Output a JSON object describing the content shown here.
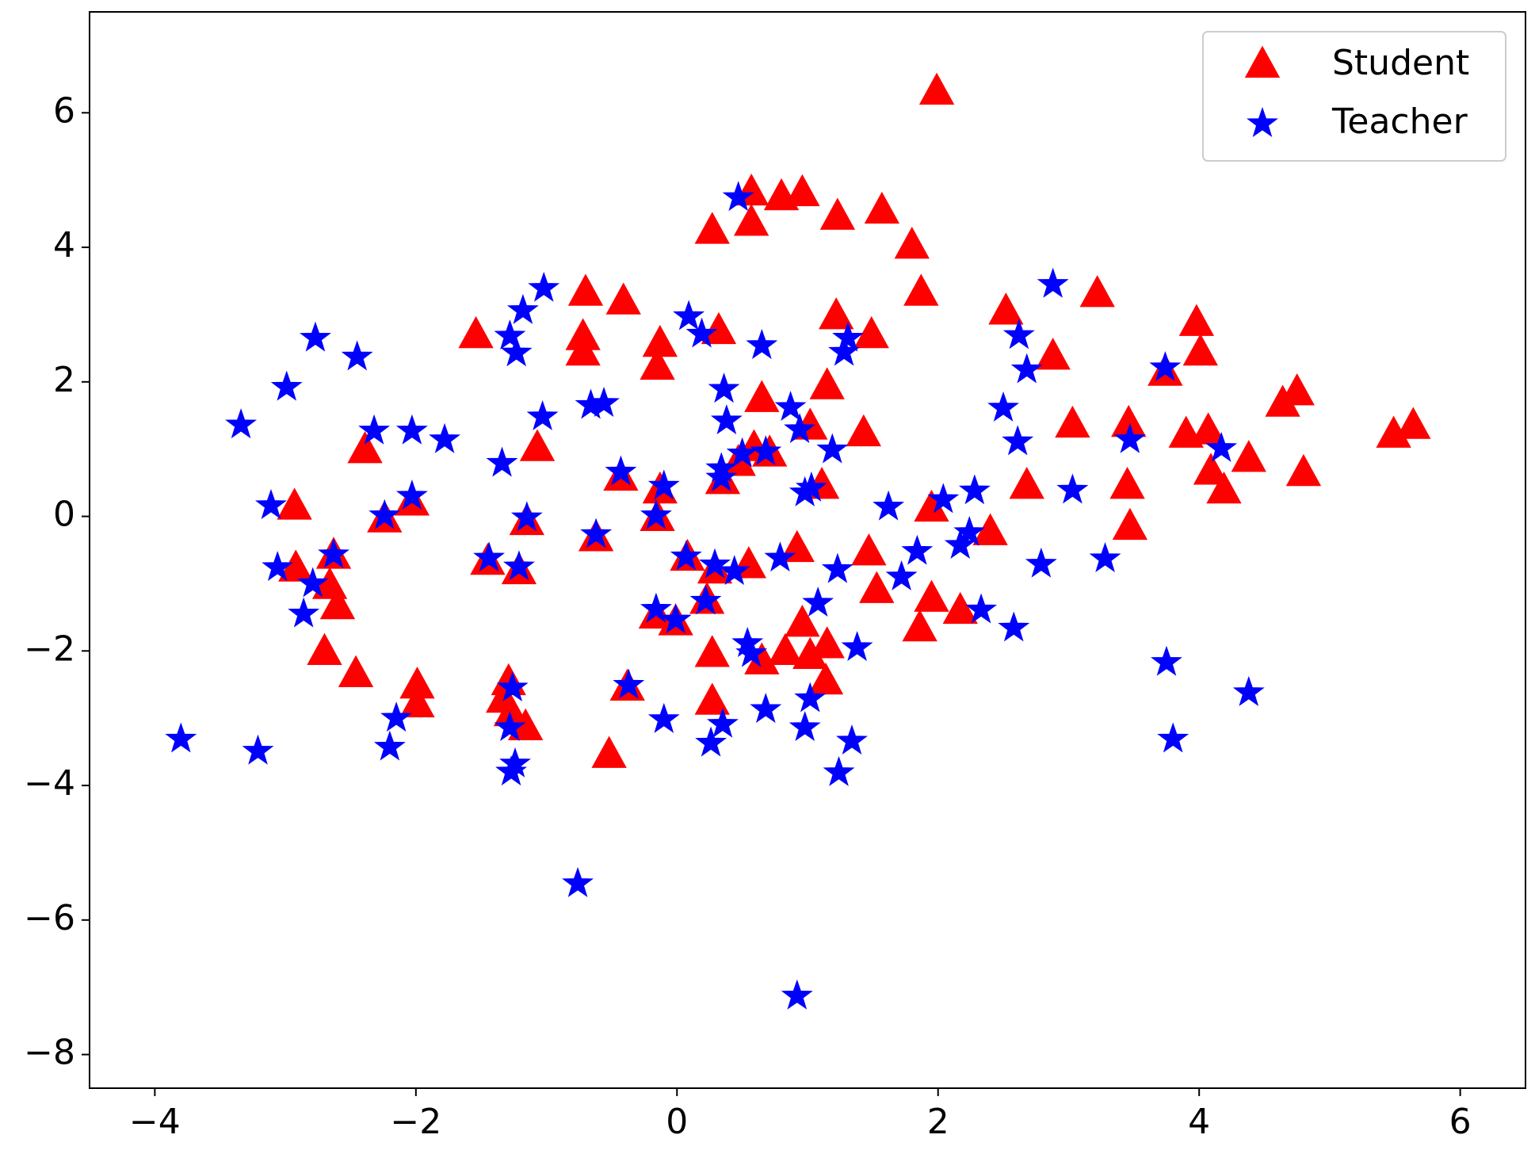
{
  "chart_data": {
    "type": "scatter",
    "xlim": [
      -4.5,
      6.5
    ],
    "ylim": [
      -8.5,
      7.5
    ],
    "xticks": [
      {
        "value": -4,
        "label": "−4"
      },
      {
        "value": -2,
        "label": "−2"
      },
      0,
      2,
      4,
      6
    ],
    "yticks": [
      {
        "value": -8,
        "label": "−8"
      },
      {
        "value": -6,
        "label": "−6"
      },
      {
        "value": -4,
        "label": "−4"
      },
      {
        "value": -2,
        "label": "−2"
      },
      0,
      2,
      4,
      6
    ],
    "legend": "upper right",
    "series": [
      {
        "name": "Student",
        "color": "#ff0000",
        "marker": "triangle",
        "x": [
          1.99,
          0.57,
          0.8,
          0.96,
          0.27,
          0.57,
          1.23,
          1.57,
          1.8,
          1.87,
          -0.7,
          -0.41,
          -1.54,
          -0.72,
          -0.72,
          -0.13,
          -0.15,
          0.32,
          1.22,
          1.49,
          2.52,
          3.22,
          2.88,
          3.98,
          4.01,
          3.74,
          4.75,
          4.64,
          5.49,
          5.64,
          4.8,
          4.38,
          4.19,
          4.09,
          4.07,
          3.9,
          3.46,
          3.45,
          3.47,
          3.03,
          2.68,
          2.4,
          1.95,
          1.95,
          1.86,
          2.17,
          1.15,
          0.65,
          1.43,
          1.02,
          1.11,
          0.59,
          0.71,
          0.47,
          0.35,
          -1.07,
          -2.39,
          -2.93,
          -2.24,
          -2.03,
          -1.15,
          -0.43,
          -0.13,
          -0.15,
          -0.62,
          -1.45,
          -1.21,
          -2.92,
          -2.63,
          -2.66,
          -2.6,
          -2.7,
          -2.46,
          -1.99,
          -1.99,
          -1.29,
          -1.33,
          -1.27,
          -1.16,
          -0.38,
          -0.52,
          0.08,
          0.29,
          0.55,
          0.92,
          1.47,
          1.53,
          -0.16,
          -0.01,
          0.23,
          0.27,
          0.27,
          0.65,
          0.83,
          0.96,
          1.02,
          1.15,
          1.14
        ],
        "values": [
          6.31,
          4.81,
          4.74,
          4.8,
          4.24,
          4.36,
          4.45,
          4.54,
          4.02,
          3.32,
          3.32,
          3.19,
          2.69,
          2.66,
          2.43,
          2.56,
          2.22,
          2.75,
          2.97,
          2.69,
          3.04,
          3.3,
          2.37,
          2.87,
          2.43,
          2.13,
          1.84,
          1.67,
          1.21,
          1.34,
          0.64,
          0.85,
          0.38,
          0.66,
          1.26,
          1.21,
          1.37,
          0.45,
          -0.16,
          1.36,
          0.45,
          -0.24,
          0.11,
          -1.23,
          -1.67,
          -1.41,
          1.93,
          1.74,
          1.23,
          1.33,
          0.45,
          1.01,
          0.93,
          0.79,
          0.52,
          1.01,
          0.98,
          0.14,
          -0.05,
          0.2,
          -0.09,
          0.57,
          0.38,
          -0.03,
          -0.33,
          -0.68,
          -0.82,
          -0.78,
          -0.59,
          -1.04,
          -1.34,
          -2.02,
          -2.35,
          -2.52,
          -2.8,
          -2.47,
          -2.73,
          -2.93,
          -3.14,
          -2.55,
          -3.55,
          -0.62,
          -0.81,
          -0.73,
          -0.49,
          -0.54,
          -1.1,
          -1.48,
          -1.58,
          -1.26,
          -2.05,
          -2.76,
          -2.16,
          -2.02,
          -1.6,
          -2.08,
          -1.92,
          -2.46
        ]
      },
      {
        "name": "Teacher",
        "color": "#0000ff",
        "marker": "star",
        "x": [
          -3.8,
          -3.21,
          -3.34,
          -2.99,
          -2.77,
          -2.45,
          -3.11,
          -3.06,
          -2.79,
          -2.86,
          -2.63,
          -2.32,
          -2.03,
          -1.78,
          -2.24,
          -2.03,
          -2.15,
          -2.2,
          -1.34,
          -1.03,
          -1.02,
          -1.18,
          -1.28,
          -1.23,
          -1.15,
          -1.44,
          -1.21,
          -1.26,
          -1.28,
          -1.24,
          -1.27,
          -0.66,
          -0.56,
          -0.43,
          -0.62,
          -0.37,
          -0.76,
          -0.1,
          -0.16,
          -0.16,
          -0.01,
          -0.1,
          0.09,
          0.19,
          0.36,
          0.38,
          0.65,
          0.47,
          0.5,
          0.68,
          0.34,
          0.34,
          0.07,
          0.29,
          0.44,
          0.22,
          0.54,
          0.57,
          0.35,
          0.26,
          0.68,
          0.79,
          0.87,
          0.94,
          0.98,
          1.03,
          1.19,
          1.08,
          1.23,
          1.02,
          0.98,
          1.24,
          1.34,
          1.38,
          1.31,
          1.28,
          1.62,
          1.72,
          1.84,
          2.04,
          2.28,
          2.17,
          2.24,
          2.33,
          2.58,
          2.5,
          2.61,
          2.62,
          2.68,
          2.88,
          3.03,
          2.79,
          3.28,
          3.47,
          3.74,
          3.75,
          3.8,
          4.17,
          4.38,
          0.92
        ],
        "values": [
          -3.31,
          -3.49,
          1.36,
          1.92,
          2.65,
          2.37,
          0.16,
          -0.76,
          -1.0,
          -1.45,
          -0.57,
          1.27,
          1.27,
          1.14,
          0.01,
          0.3,
          -3.0,
          -3.43,
          0.79,
          1.48,
          3.39,
          3.06,
          2.68,
          2.43,
          -0.02,
          -0.62,
          -0.75,
          -2.55,
          -3.14,
          -3.68,
          -3.8,
          1.65,
          1.68,
          0.66,
          -0.27,
          -2.51,
          -5.46,
          0.45,
          0.01,
          -1.38,
          -1.54,
          -3.02,
          2.97,
          2.71,
          1.89,
          1.42,
          2.54,
          4.74,
          0.93,
          0.96,
          0.71,
          0.57,
          -0.6,
          -0.72,
          -0.82,
          -1.26,
          -1.89,
          -2.04,
          -3.09,
          -3.37,
          -2.87,
          -0.62,
          1.62,
          1.29,
          0.35,
          0.42,
          0.99,
          -1.29,
          -0.79,
          -2.71,
          -3.14,
          -3.81,
          -3.34,
          -1.95,
          2.65,
          2.44,
          0.14,
          -0.9,
          -0.52,
          0.25,
          0.38,
          -0.43,
          -0.24,
          -1.39,
          -1.66,
          1.61,
          1.11,
          2.69,
          2.18,
          3.45,
          0.39,
          -0.71,
          -0.63,
          1.14,
          2.21,
          -2.17,
          -3.31,
          1.01,
          -2.62,
          -7.13
        ]
      }
    ]
  }
}
